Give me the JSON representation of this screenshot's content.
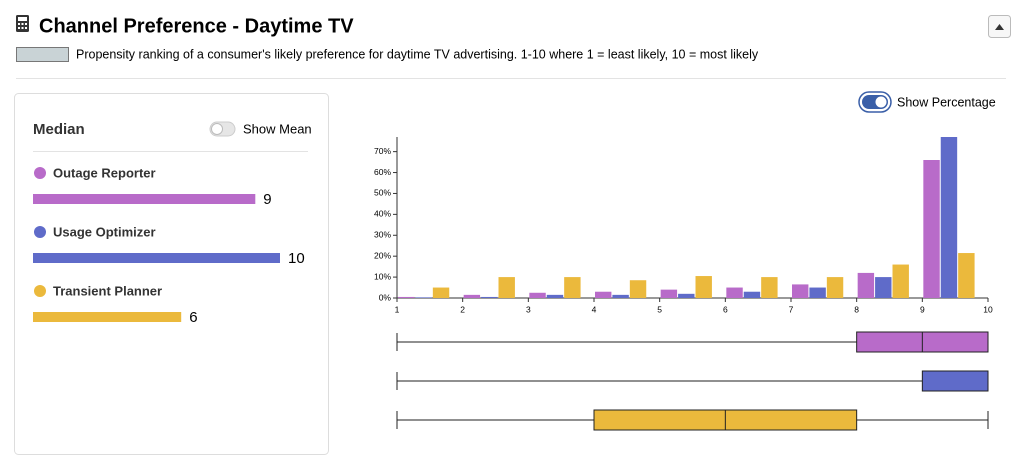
{
  "header": {
    "title": "Channel Preference - Daytime TV",
    "description": "Propensity ranking of a consumer's likely preference for daytime TV advertising. 1-10 where 1 = least likely, 10 = most likely"
  },
  "panel": {
    "title": "Median",
    "toggle_label": "Show Mean",
    "items": [
      {
        "name": "Outage Reporter",
        "color": "#b86bc9",
        "value": 9
      },
      {
        "name": "Usage Optimizer",
        "color": "#5f6bc9",
        "value": 10
      },
      {
        "name": "Transient Planner",
        "color": "#ebb93c",
        "value": 6
      }
    ]
  },
  "chart_toggle_label": "Show Percentage",
  "chart_data": [
    {
      "type": "histogram",
      "bins": [
        1,
        2,
        3,
        4,
        5,
        6,
        7,
        8,
        9,
        10
      ],
      "xlim": [
        1,
        10
      ],
      "xticks": [
        1,
        2,
        3,
        4,
        5,
        6,
        7,
        8,
        9,
        10
      ],
      "ylim": [
        0,
        77
      ],
      "yticks": [
        {
          "value": 0,
          "label": "0%"
        },
        {
          "value": 10,
          "label": "10%"
        },
        {
          "value": 20,
          "label": "20%"
        },
        {
          "value": 30,
          "label": "30%"
        },
        {
          "value": 40,
          "label": "40%"
        },
        {
          "value": 50,
          "label": "50%"
        },
        {
          "value": 60,
          "label": "60%"
        },
        {
          "value": 70,
          "label": "70%"
        }
      ],
      "series": [
        {
          "color": "#b86bc9",
          "values": [
            0.5,
            1.5,
            2.5,
            3,
            4,
            5,
            6.5,
            12,
            66
          ]
        },
        {
          "color": "#5f6bc9",
          "values": [
            0.3,
            0.5,
            1.5,
            1.5,
            2,
            3,
            5,
            10,
            77
          ]
        },
        {
          "color": "#ebb93c",
          "values": [
            5,
            10,
            10,
            8.5,
            10.5,
            10,
            10,
            16,
            21.5
          ]
        }
      ]
    },
    {
      "type": "box",
      "xlim": [
        1,
        10
      ],
      "series": [
        {
          "color": "#b86bc9",
          "min": 1,
          "q1": 8,
          "median": 9,
          "q3": 10,
          "max": 10
        },
        {
          "color": "#5f6bc9",
          "min": 1,
          "q1": 9,
          "median": 10,
          "q3": 10,
          "max": 10
        },
        {
          "color": "#ebb93c",
          "min": 1,
          "q1": 4,
          "median": 6,
          "q3": 8,
          "max": 10
        }
      ]
    }
  ]
}
